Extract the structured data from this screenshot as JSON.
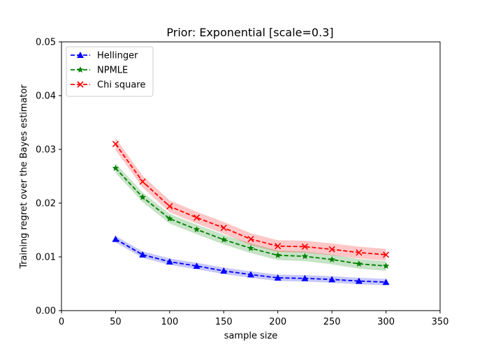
{
  "chart_data": {
    "type": "line",
    "title": "Prior: Exponential [scale=0.3]",
    "xlabel": "sample size",
    "ylabel": "Training regret over the Bayes estimator",
    "xlim": [
      0,
      350
    ],
    "ylim": [
      0,
      0.05
    ],
    "xticks": [
      0,
      50,
      100,
      150,
      200,
      250,
      300,
      350
    ],
    "yticks": [
      0.0,
      0.01,
      0.02,
      0.03,
      0.04,
      0.05
    ],
    "xtick_labels": [
      "0",
      "50",
      "100",
      "150",
      "200",
      "250",
      "300",
      "350"
    ],
    "ytick_labels": [
      "0.00",
      "0.01",
      "0.02",
      "0.03",
      "0.04",
      "0.05"
    ],
    "grid": false,
    "legend_position": "top-left",
    "x": [
      50,
      75,
      100,
      125,
      150,
      175,
      200,
      225,
      250,
      275,
      300
    ],
    "series": [
      {
        "name": "Hellinger",
        "color": "#0000ff",
        "marker": "triangle",
        "values": [
          0.0133,
          0.0104,
          0.0091,
          0.0083,
          0.0074,
          0.0067,
          0.0061,
          0.006,
          0.0058,
          0.0055,
          0.0053
        ],
        "band": 0.0006
      },
      {
        "name": "NPMLE",
        "color": "#008000",
        "marker": "star",
        "values": [
          0.0265,
          0.0211,
          0.0171,
          0.0151,
          0.0132,
          0.0116,
          0.0103,
          0.0101,
          0.0095,
          0.0087,
          0.0083
        ],
        "band": 0.0009
      },
      {
        "name": "Chi square",
        "color": "#ff0000",
        "marker": "x",
        "values": [
          0.031,
          0.024,
          0.0194,
          0.0173,
          0.0154,
          0.0133,
          0.012,
          0.0119,
          0.0114,
          0.0108,
          0.0104
        ],
        "band": 0.0011
      }
    ]
  }
}
